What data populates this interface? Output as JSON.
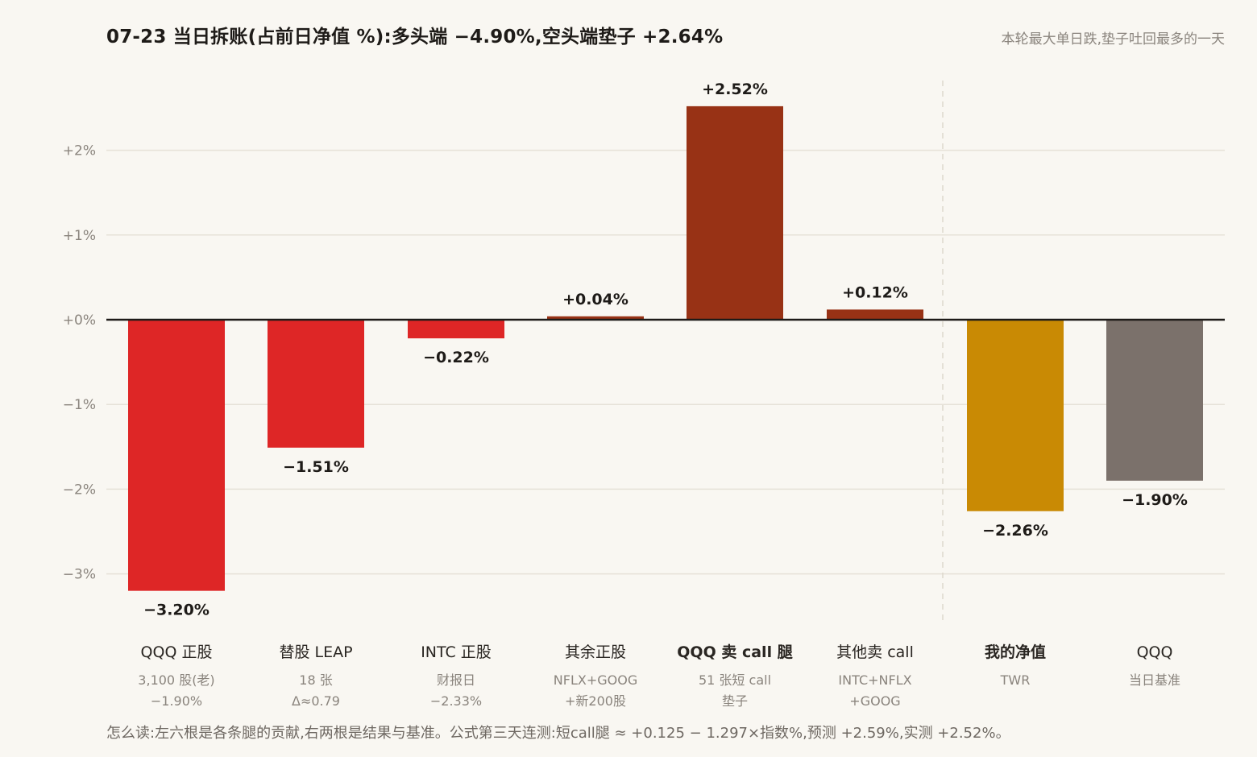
{
  "chart_data": {
    "type": "bar",
    "title": "07-23 当日拆账(占前日净值 %):多头端 −4.90%,空头端垫子 +2.64%",
    "subtitle": "本轮最大单日跌,垫子吐回最多的一天",
    "ylim": [
      -3.5,
      2.75
    ],
    "yticks": [
      {
        "value": 2,
        "label": "+2%"
      },
      {
        "value": 1,
        "label": "+1%"
      },
      {
        "value": 0,
        "label": "+0%"
      },
      {
        "value": -1,
        "label": "−1%"
      },
      {
        "value": -2,
        "label": "−2%"
      },
      {
        "value": -3,
        "label": "−3%"
      }
    ],
    "grid": true,
    "bars": [
      {
        "category": "QQQ 正股",
        "sub1": "3,100 股(老)",
        "sub2": "−1.90%",
        "value": -3.2,
        "label": "−3.20%",
        "color": "#de2626",
        "bold": false
      },
      {
        "category": "替股 LEAP",
        "sub1": "18 张",
        "sub2": "Δ≈0.79",
        "value": -1.51,
        "label": "−1.51%",
        "color": "#de2626",
        "bold": false
      },
      {
        "category": "INTC 正股",
        "sub1": "财报日",
        "sub2": "−2.33%",
        "value": -0.22,
        "label": "−0.22%",
        "color": "#de2626",
        "bold": false
      },
      {
        "category": "其余正股",
        "sub1": "NFLX+GOOG",
        "sub2": "+新200股",
        "value": 0.04,
        "label": "+0.04%",
        "color": "#983215",
        "bold": false
      },
      {
        "category": "QQQ 卖 call 腿",
        "sub1": "51 张短 call",
        "sub2": "垫子",
        "value": 2.52,
        "label": "+2.52%",
        "color": "#983215",
        "bold": true
      },
      {
        "category": "其他卖 call",
        "sub1": "INTC+NFLX",
        "sub2": "+GOOG",
        "value": 0.12,
        "label": "+0.12%",
        "color": "#983215",
        "bold": false
      },
      {
        "category": "我的净值",
        "sub1": "TWR",
        "sub2": "",
        "value": -2.26,
        "label": "−2.26%",
        "color": "#c98a04",
        "bold": true
      },
      {
        "category": "QQQ",
        "sub1": "当日基准",
        "sub2": "",
        "value": -1.9,
        "label": "−1.90%",
        "color": "#7b716b",
        "bold": false
      }
    ]
  },
  "footnote": "怎么读:左六根是各条腿的贡献,右两根是结果与基准。公式第三天连测:短call腿 ≈ +0.125 − 1.297×指数%,预测 +2.59%,实测 +2.52%。"
}
